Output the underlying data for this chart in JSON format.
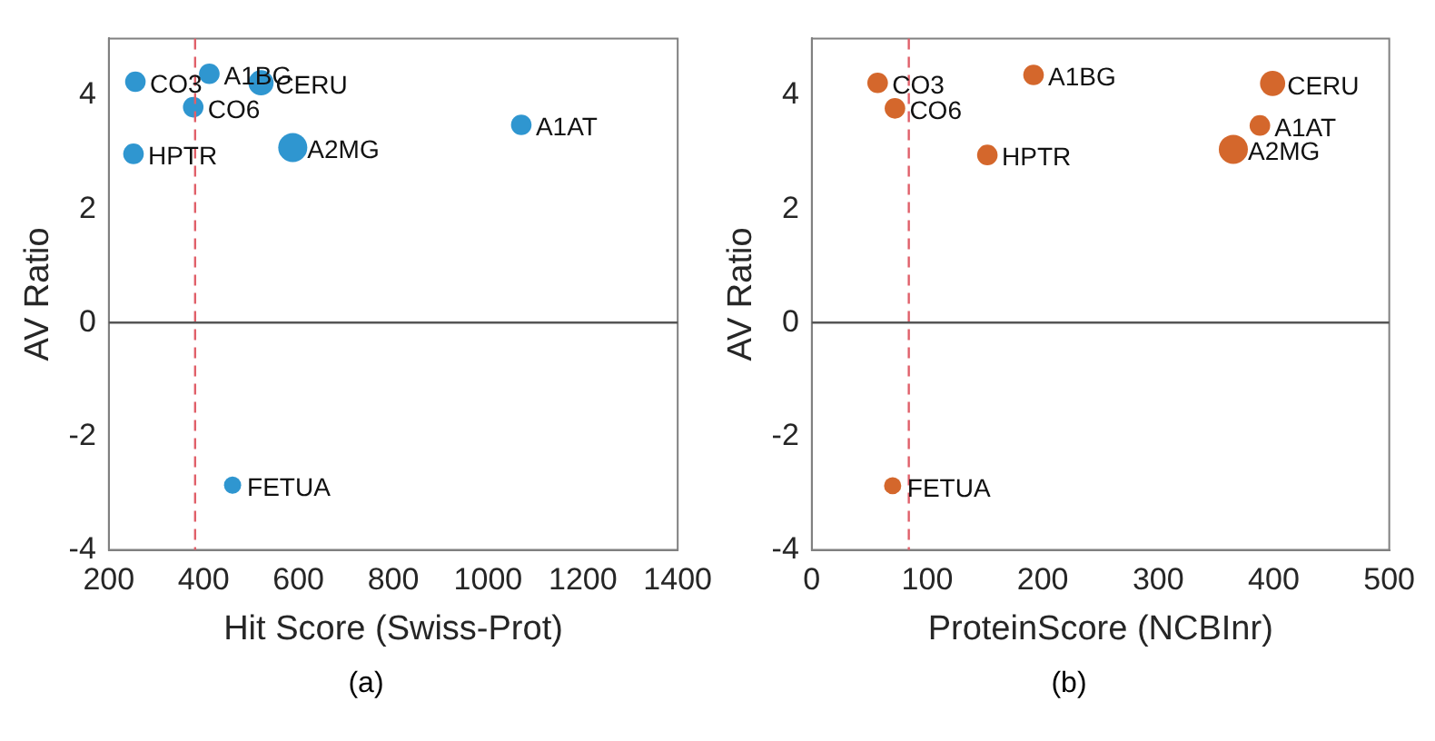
{
  "chart_data": [
    {
      "type": "bubble",
      "xlabel": "Hit Score (Swiss-Prot)",
      "ylabel": "AV Ratio",
      "xlim": [
        200,
        1400
      ],
      "xticks": [
        200,
        400,
        600,
        800,
        1000,
        1200,
        1400
      ],
      "ylim": [
        -4,
        5
      ],
      "yticks": [
        -4,
        -2,
        0,
        2,
        4
      ],
      "grid": false,
      "legend": false,
      "series": [
        {
          "color": "#2f96d0",
          "x": [
            256,
            412,
            521,
            378,
            252,
            588,
            1070,
            461
          ],
          "values": [
            4.24,
            4.38,
            4.22,
            3.79,
            2.97,
            3.08,
            3.48,
            -2.86
          ],
          "sizes": [
            0.5,
            0.5,
            0.75,
            0.5,
            0.5,
            1,
            0.5,
            0.35
          ]
        }
      ],
      "ref_lines": [
        {
          "axis": "x",
          "value": 382,
          "color": "#e0606a",
          "line_style": "dashed"
        },
        {
          "axis": "y",
          "value": 0,
          "color": "#555555",
          "line_style": "solid"
        }
      ],
      "annotations": [
        {
          "text": "CO3",
          "x": 256,
          "y": 4.24
        },
        {
          "text": "A1BG",
          "x": 412,
          "y": 4.38
        },
        {
          "text": "CERU",
          "x": 521,
          "y": 4.22
        },
        {
          "text": "CO6",
          "x": 378,
          "y": 3.79
        },
        {
          "text": "HPTR",
          "x": 252,
          "y": 2.97
        },
        {
          "text": "A2MG",
          "x": 588,
          "y": 3.08
        },
        {
          "text": "A1AT",
          "x": 1070,
          "y": 3.48
        },
        {
          "text": "FETUA",
          "x": 461,
          "y": -2.86
        },
        "(a)"
      ]
    },
    {
      "type": "bubble",
      "xlabel": "ProteinScore (NCBInr)",
      "ylabel": "AV Ratio",
      "xlim": [
        0,
        500
      ],
      "xticks": [
        0,
        100,
        200,
        300,
        400,
        500
      ],
      "ylim": [
        -4,
        5
      ],
      "yticks": [
        -4,
        -2,
        0,
        2,
        4
      ],
      "grid": false,
      "legend": false,
      "series": [
        {
          "color": "#d4672c",
          "x": [
            57,
            192,
            399,
            72,
            152,
            365,
            388,
            70
          ],
          "values": [
            4.22,
            4.36,
            4.21,
            3.77,
            2.95,
            3.05,
            3.47,
            -2.87
          ],
          "sizes": [
            0.5,
            0.5,
            0.75,
            0.5,
            0.5,
            1,
            0.5,
            0.35
          ]
        }
      ],
      "ref_lines": [
        {
          "axis": "x",
          "value": 84,
          "color": "#e0606a",
          "line_style": "dashed"
        },
        {
          "axis": "y",
          "value": 0,
          "color": "#555555",
          "line_style": "solid"
        }
      ],
      "annotations": [
        {
          "text": "CO3",
          "x": 57,
          "y": 4.22
        },
        {
          "text": "A1BG",
          "x": 192,
          "y": 4.36
        },
        {
          "text": "CERU",
          "x": 399,
          "y": 4.21
        },
        {
          "text": "CO6",
          "x": 72,
          "y": 3.77
        },
        {
          "text": "HPTR",
          "x": 152,
          "y": 2.95
        },
        {
          "text": "A2MG",
          "x": 365,
          "y": 3.05
        },
        {
          "text": "A1AT",
          "x": 388,
          "y": 3.47
        },
        {
          "text": "FETUA",
          "x": 70,
          "y": -2.87
        },
        "(b)"
      ]
    }
  ]
}
